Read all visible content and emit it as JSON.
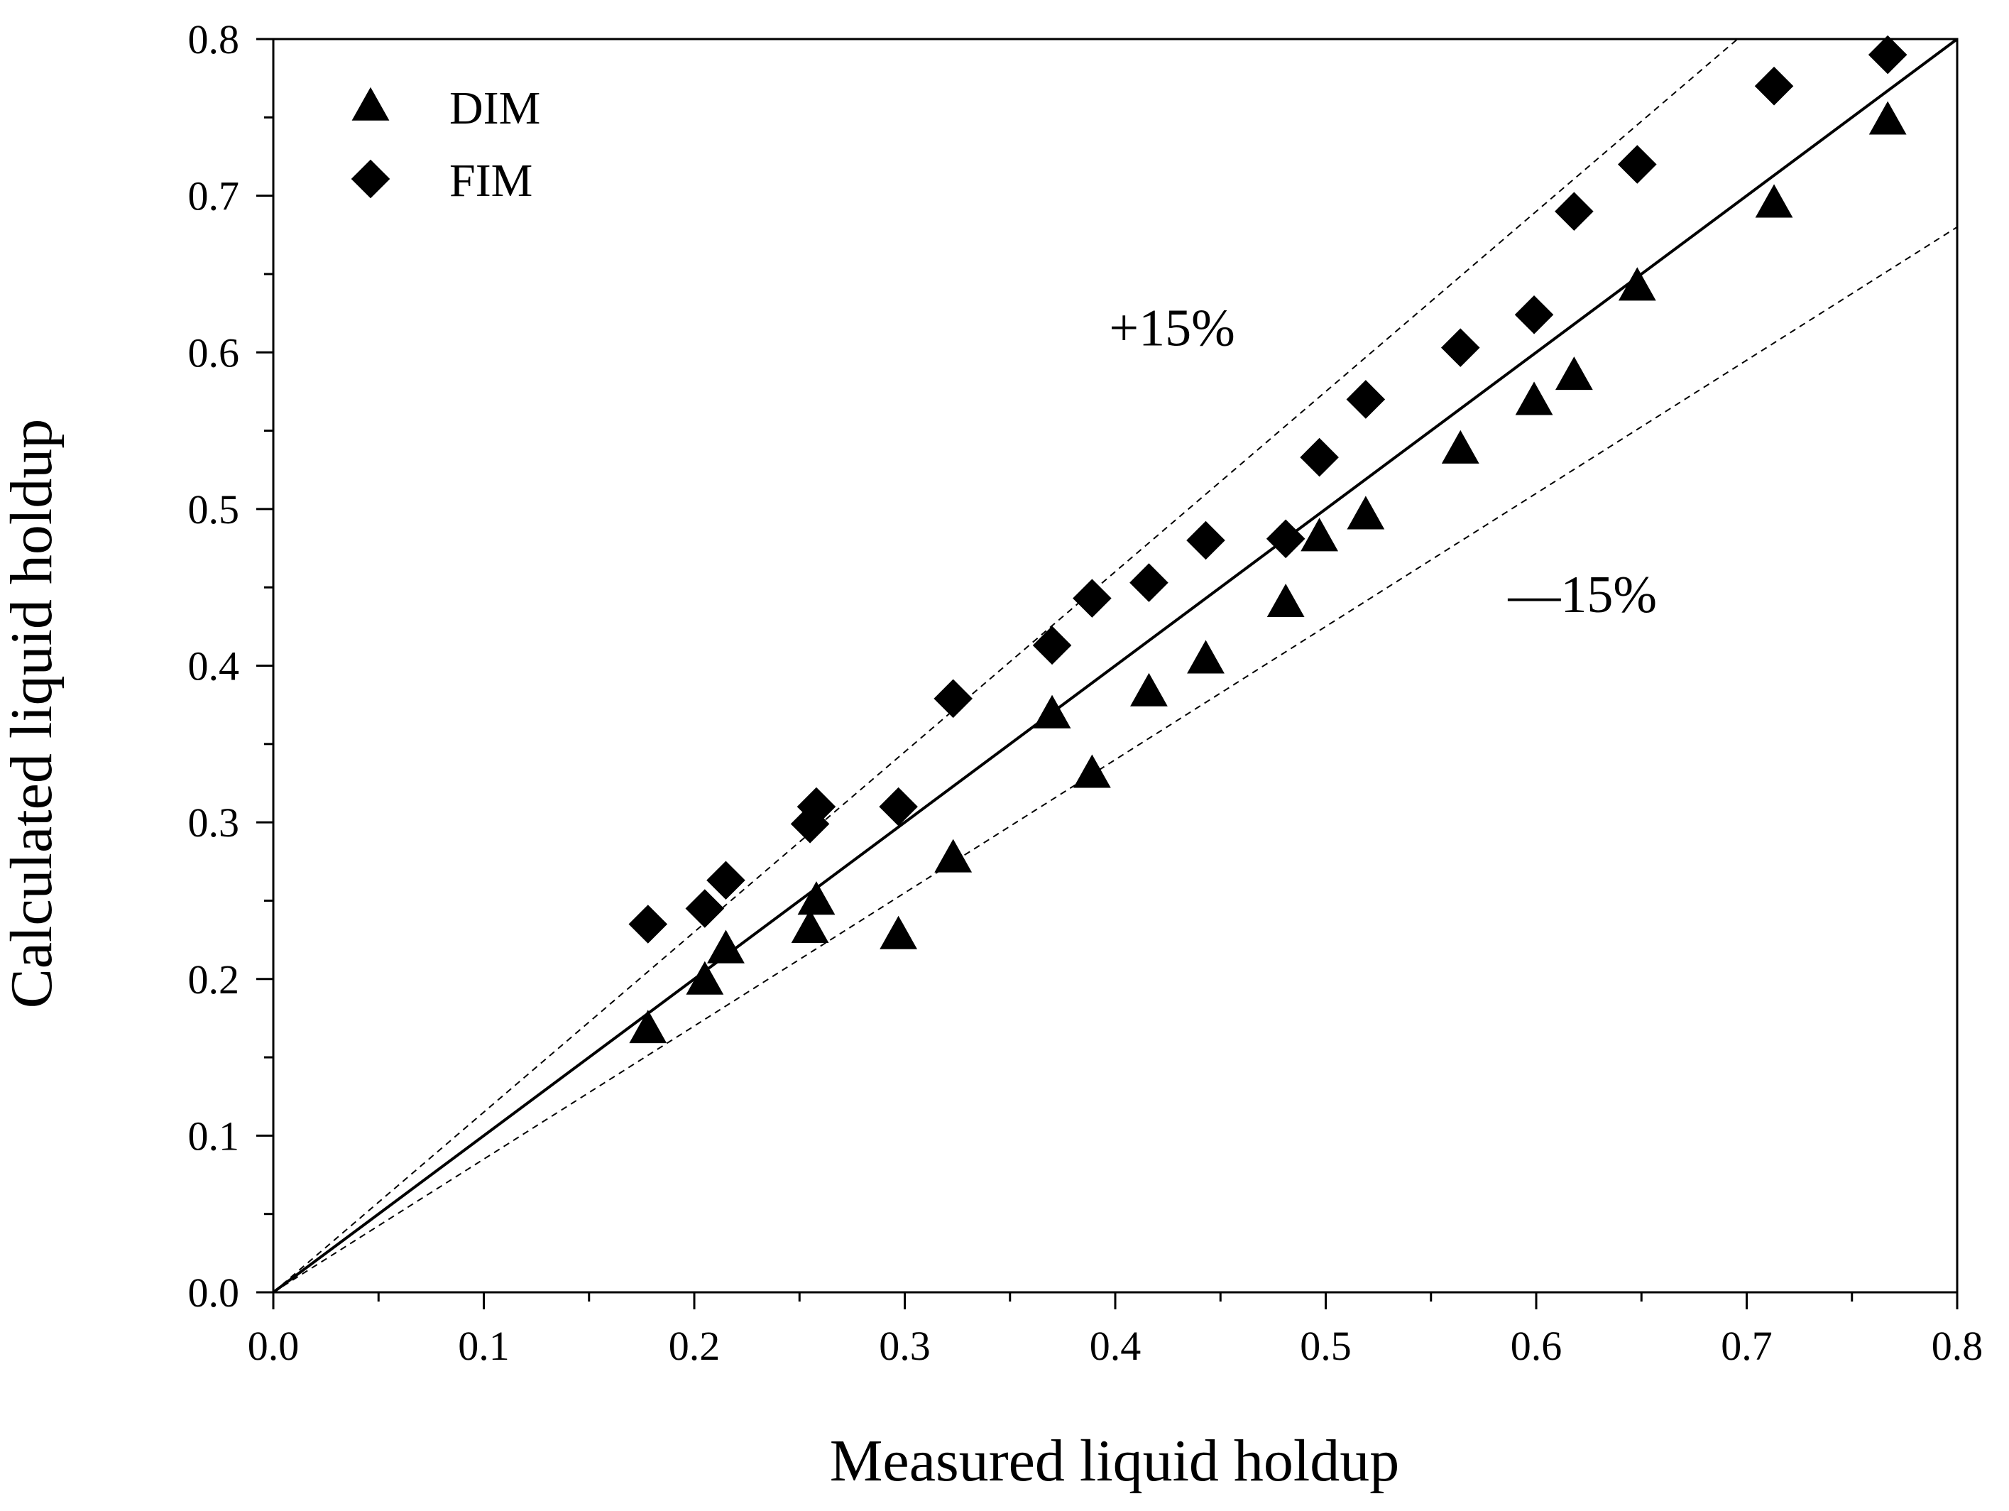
{
  "chart_data": {
    "type": "scatter",
    "title": "",
    "xlabel": "Measured liquid holdup",
    "ylabel": "Calculated liquid holdup",
    "xlim": [
      0.0,
      0.8
    ],
    "ylim": [
      0.0,
      0.8
    ],
    "x_ticks": [
      "0.0",
      "0.1",
      "0.2",
      "0.3",
      "0.4",
      "0.5",
      "0.6",
      "0.7",
      "0.8"
    ],
    "y_ticks": [
      "0.0",
      "0.1",
      "0.2",
      "0.3",
      "0.4",
      "0.5",
      "0.6",
      "0.7",
      "0.8"
    ],
    "grid": false,
    "legend_position": "top-left",
    "series": [
      {
        "name": "DIM",
        "marker": "triangle",
        "color": "#000000",
        "points": [
          [
            0.178,
            0.168
          ],
          [
            0.205,
            0.199
          ],
          [
            0.215,
            0.219
          ],
          [
            0.255,
            0.232
          ],
          [
            0.258,
            0.25
          ],
          [
            0.297,
            0.228
          ],
          [
            0.323,
            0.277
          ],
          [
            0.37,
            0.369
          ],
          [
            0.389,
            0.331
          ],
          [
            0.416,
            0.383
          ],
          [
            0.443,
            0.404
          ],
          [
            0.481,
            0.44
          ],
          [
            0.497,
            0.482
          ],
          [
            0.519,
            0.496
          ],
          [
            0.564,
            0.538
          ],
          [
            0.599,
            0.569
          ],
          [
            0.618,
            0.585
          ],
          [
            0.648,
            0.642
          ],
          [
            0.713,
            0.695
          ],
          [
            0.767,
            0.748
          ]
        ]
      },
      {
        "name": "FIM",
        "marker": "diamond",
        "color": "#000000",
        "points": [
          [
            0.178,
            0.235
          ],
          [
            0.205,
            0.245
          ],
          [
            0.215,
            0.263
          ],
          [
            0.255,
            0.299
          ],
          [
            0.258,
            0.31
          ],
          [
            0.297,
            0.31
          ],
          [
            0.323,
            0.379
          ],
          [
            0.37,
            0.413
          ],
          [
            0.389,
            0.443
          ],
          [
            0.416,
            0.453
          ],
          [
            0.443,
            0.48
          ],
          [
            0.481,
            0.481
          ],
          [
            0.497,
            0.533
          ],
          [
            0.519,
            0.57
          ],
          [
            0.564,
            0.603
          ],
          [
            0.599,
            0.624
          ],
          [
            0.618,
            0.69
          ],
          [
            0.648,
            0.72
          ],
          [
            0.713,
            0.77
          ],
          [
            0.767,
            0.79
          ]
        ]
      }
    ],
    "reference_lines": [
      {
        "name": "parity",
        "slope": 1.0,
        "style": "solid"
      },
      {
        "name": "plus15",
        "slope": 1.15,
        "style": "dashed"
      },
      {
        "name": "minus15",
        "slope": 0.85,
        "style": "dashed"
      }
    ],
    "annotations": [
      {
        "id": "plus15",
        "text": "+15%",
        "x": 0.427,
        "y": 0.617
      },
      {
        "id": "minus15",
        "text": "—15%",
        "x": 0.622,
        "y": 0.447
      }
    ]
  }
}
